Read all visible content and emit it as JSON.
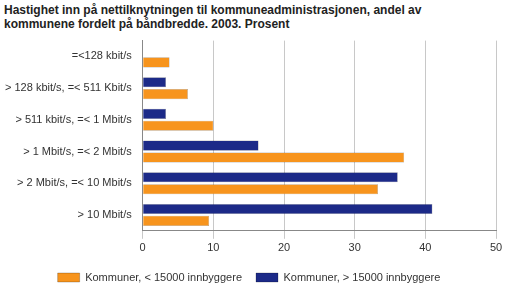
{
  "chart_data": {
    "type": "bar",
    "orientation": "horizontal",
    "title": "Hastighet inn på nettilknytningen til kommuneadministrasjonen, andel av kommunene fordelt på båndbredde. 2003. Prosent",
    "categories": [
      "=<128 kbit/s",
      "> 128 kbit/s, =< 511 Kbit/s",
      "> 511 kbit/s, =< 1 Mbit/s",
      "> 1 Mbit/s, =< 2 Mbit/s",
      "> 2 Mbit/s, =< 10 Mbit/s",
      "> 10 Mbit/s"
    ],
    "series": [
      {
        "name": "Kommuner, > 15000 innbyggere",
        "color": "#1c2a88",
        "values": [
          0,
          3.3,
          3.3,
          16.4,
          36.1,
          41.0
        ]
      },
      {
        "name": "Kommuner, < 15000 innbyggere",
        "color": "#f7941d",
        "values": [
          3.8,
          6.4,
          10.0,
          37.0,
          33.3,
          9.4
        ]
      }
    ],
    "xlim": [
      0,
      50
    ],
    "xticks": [
      0,
      10,
      20,
      30,
      40,
      50
    ],
    "grid": true,
    "legend": "bottom"
  }
}
